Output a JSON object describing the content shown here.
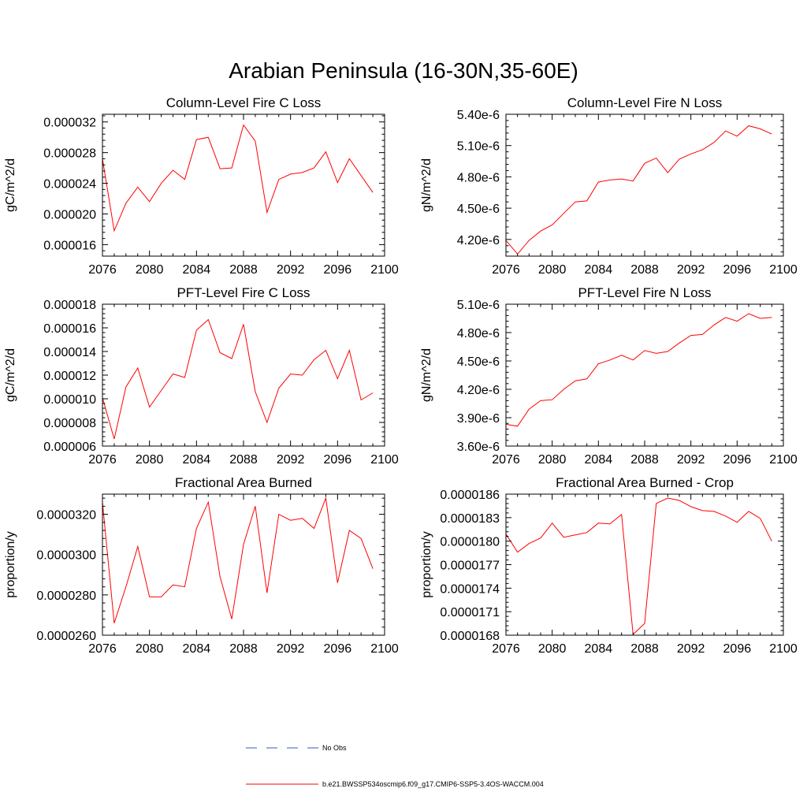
{
  "main_title": "Arabian Peninsula (16-30N,35-60E)",
  "colors": {
    "model": "#ff0000",
    "obs": "#3355cc",
    "axis": "#000000"
  },
  "legend": {
    "obs_label": "No Obs",
    "model_label": "b.e21.BWSSP534oscmip6.f09_g17.CMIP6-SSP5-3.4OS-WACCM.004"
  },
  "chart_data": [
    {
      "type": "line",
      "title": "Column-Level Fire C Loss",
      "ylabel": "gC/m^2/d",
      "xlim": [
        2076,
        2100
      ],
      "ylim": [
        1.45e-05,
        3.3e-05
      ],
      "xticks": [
        "2076",
        "2080",
        "2084",
        "2088",
        "2092",
        "2096",
        "2100"
      ],
      "yticks": [
        "0.000016",
        "0.000020",
        "0.000024",
        "0.000028",
        "0.000032"
      ],
      "x": [
        2076,
        2077,
        2078,
        2079,
        2080,
        2081,
        2082,
        2083,
        2084,
        2085,
        2086,
        2087,
        2088,
        2089,
        2090,
        2091,
        2092,
        2093,
        2094,
        2095,
        2096,
        2097,
        2098,
        2099
      ],
      "series": [
        {
          "name": "b.e21.BWSSP534oscmip6.f09_g17.CMIP6-SSP5-3.4OS-WACCM.004",
          "values": [
            2.72e-05,
            1.78e-05,
            2.14e-05,
            2.35e-05,
            2.16e-05,
            2.4e-05,
            2.57e-05,
            2.45e-05,
            2.97e-05,
            3e-05,
            2.59e-05,
            2.6e-05,
            3.16e-05,
            2.95e-05,
            2.02e-05,
            2.45e-05,
            2.52e-05,
            2.54e-05,
            2.6e-05,
            2.81e-05,
            2.41e-05,
            2.72e-05,
            2.5e-05,
            2.28e-05
          ]
        }
      ]
    },
    {
      "type": "line",
      "title": "Column-Level Fire N Loss",
      "ylabel": "gN/m^2/d",
      "xlim": [
        2076,
        2100
      ],
      "ylim": [
        4.04e-06,
        5.4e-06
      ],
      "xticks": [
        "2076",
        "2080",
        "2084",
        "2088",
        "2092",
        "2096",
        "2100"
      ],
      "yticks": [
        "4.20e-6",
        "4.50e-6",
        "4.80e-6",
        "5.10e-6",
        "5.40e-6"
      ],
      "x": [
        2076,
        2077,
        2078,
        2079,
        2080,
        2081,
        2082,
        2083,
        2084,
        2085,
        2086,
        2087,
        2088,
        2089,
        2090,
        2091,
        2092,
        2093,
        2094,
        2095,
        2096,
        2097,
        2098,
        2099
      ],
      "series": [
        {
          "name": "b.e21.BWSSP534oscmip6.f09_g17.CMIP6-SSP5-3.4OS-WACCM.004",
          "values": [
            4.19e-06,
            4.06e-06,
            4.19e-06,
            4.28e-06,
            4.34e-06,
            4.45e-06,
            4.56e-06,
            4.57e-06,
            4.75e-06,
            4.77e-06,
            4.78e-06,
            4.76e-06,
            4.93e-06,
            4.98e-06,
            4.84e-06,
            4.97e-06,
            5.02e-06,
            5.06e-06,
            5.13e-06,
            5.24e-06,
            5.19e-06,
            5.29e-06,
            5.26e-06,
            5.21e-06
          ]
        }
      ]
    },
    {
      "type": "line",
      "title": "PFT-Level Fire C Loss",
      "ylabel": "gC/m^2/d",
      "xlim": [
        2076,
        2100
      ],
      "ylim": [
        6e-06,
        1.8e-05
      ],
      "xticks": [
        "2076",
        "2080",
        "2084",
        "2088",
        "2092",
        "2096",
        "2100"
      ],
      "yticks": [
        "0.000006",
        "0.000008",
        "0.000010",
        "0.000012",
        "0.000014",
        "0.000016",
        "0.000018"
      ],
      "x": [
        2076,
        2077,
        2078,
        2079,
        2080,
        2081,
        2082,
        2083,
        2084,
        2085,
        2086,
        2087,
        2088,
        2089,
        2090,
        2091,
        2092,
        2093,
        2094,
        2095,
        2096,
        2097,
        2098,
        2099
      ],
      "series": [
        {
          "name": "b.e21.BWSSP534oscmip6.f09_g17.CMIP6-SSP5-3.4OS-WACCM.004",
          "values": [
            1.01e-05,
            6.6e-06,
            1.1e-05,
            1.26e-05,
            9.3e-06,
            1.07e-05,
            1.21e-05,
            1.18e-05,
            1.58e-05,
            1.67e-05,
            1.39e-05,
            1.34e-05,
            1.63e-05,
            1.06e-05,
            8e-06,
            1.09e-05,
            1.21e-05,
            1.2e-05,
            1.33e-05,
            1.41e-05,
            1.17e-05,
            1.41e-05,
            9.9e-06,
            1.05e-05
          ]
        }
      ]
    },
    {
      "type": "line",
      "title": "PFT-Level Fire N Loss",
      "ylabel": "gN/m^2/d",
      "xlim": [
        2076,
        2100
      ],
      "ylim": [
        3.6e-06,
        5.1e-06
      ],
      "xticks": [
        "2076",
        "2080",
        "2084",
        "2088",
        "2092",
        "2096",
        "2100"
      ],
      "yticks": [
        "3.60e-6",
        "3.90e-6",
        "4.20e-6",
        "4.50e-6",
        "4.80e-6",
        "5.10e-6"
      ],
      "x": [
        2076,
        2077,
        2078,
        2079,
        2080,
        2081,
        2082,
        2083,
        2084,
        2085,
        2086,
        2087,
        2088,
        2089,
        2090,
        2091,
        2092,
        2093,
        2094,
        2095,
        2096,
        2097,
        2098,
        2099
      ],
      "series": [
        {
          "name": "b.e21.BWSSP534oscmip6.f09_g17.CMIP6-SSP5-3.4OS-WACCM.004",
          "values": [
            3.83e-06,
            3.81e-06,
            3.99e-06,
            4.08e-06,
            4.09e-06,
            4.2e-06,
            4.29e-06,
            4.31e-06,
            4.47e-06,
            4.51e-06,
            4.56e-06,
            4.51e-06,
            4.61e-06,
            4.58e-06,
            4.6e-06,
            4.69e-06,
            4.77e-06,
            4.78e-06,
            4.88e-06,
            4.96e-06,
            4.92e-06,
            5e-06,
            4.95e-06,
            4.96e-06
          ]
        }
      ]
    },
    {
      "type": "line",
      "title": "Fractional Area Burned",
      "ylabel": "proportion/y",
      "xlim": [
        2076,
        2100
      ],
      "ylim": [
        2.6e-05,
        3.3e-05
      ],
      "xticks": [
        "2076",
        "2080",
        "2084",
        "2088",
        "2092",
        "2096",
        "2100"
      ],
      "yticks": [
        "0.0000260",
        "0.0000280",
        "0.0000300",
        "0.0000320"
      ],
      "x": [
        2076,
        2077,
        2078,
        2079,
        2080,
        2081,
        2082,
        2083,
        2084,
        2085,
        2086,
        2087,
        2088,
        2089,
        2090,
        2091,
        2092,
        2093,
        2094,
        2095,
        2096,
        2097,
        2098,
        2099
      ],
      "series": [
        {
          "name": "b.e21.BWSSP534oscmip6.f09_g17.CMIP6-SSP5-3.4OS-WACCM.004",
          "values": [
            3.26e-05,
            2.66e-05,
            2.84e-05,
            3.04e-05,
            2.79e-05,
            2.79e-05,
            2.85e-05,
            2.84e-05,
            3.13e-05,
            3.26e-05,
            2.89e-05,
            2.68e-05,
            3.05e-05,
            3.24e-05,
            2.81e-05,
            3.2e-05,
            3.17e-05,
            3.18e-05,
            3.13e-05,
            3.28e-05,
            2.86e-05,
            3.12e-05,
            3.08e-05,
            2.93e-05
          ]
        }
      ]
    },
    {
      "type": "line",
      "title": "Fractional Area Burned - Crop",
      "ylabel": "proportion/y",
      "xlim": [
        2076,
        2100
      ],
      "ylim": [
        1.68e-05,
        1.86e-05
      ],
      "xticks": [
        "2076",
        "2080",
        "2084",
        "2088",
        "2092",
        "2096",
        "2100"
      ],
      "yticks": [
        "0.0000168",
        "0.0000171",
        "0.0000174",
        "0.0000177",
        "0.0000180",
        "0.0000183",
        "0.0000186"
      ],
      "x": [
        2076,
        2077,
        2078,
        2079,
        2080,
        2081,
        2082,
        2083,
        2084,
        2085,
        2086,
        2087,
        2088,
        2089,
        2090,
        2091,
        2092,
        2093,
        2094,
        2095,
        2096,
        2097,
        2098,
        2099
      ],
      "series": [
        {
          "name": "b.e21.BWSSP534oscmip6.f09_g17.CMIP6-SSP5-3.4OS-WACCM.004",
          "values": [
            1.809e-05,
            1.786e-05,
            1.797e-05,
            1.804e-05,
            1.823e-05,
            1.805e-05,
            1.808e-05,
            1.811e-05,
            1.823e-05,
            1.822e-05,
            1.834e-05,
            1.681e-05,
            1.695e-05,
            1.848e-05,
            1.855e-05,
            1.852e-05,
            1.844e-05,
            1.839e-05,
            1.838e-05,
            1.832e-05,
            1.824e-05,
            1.838e-05,
            1.829e-05,
            1.8e-05
          ]
        }
      ]
    }
  ]
}
